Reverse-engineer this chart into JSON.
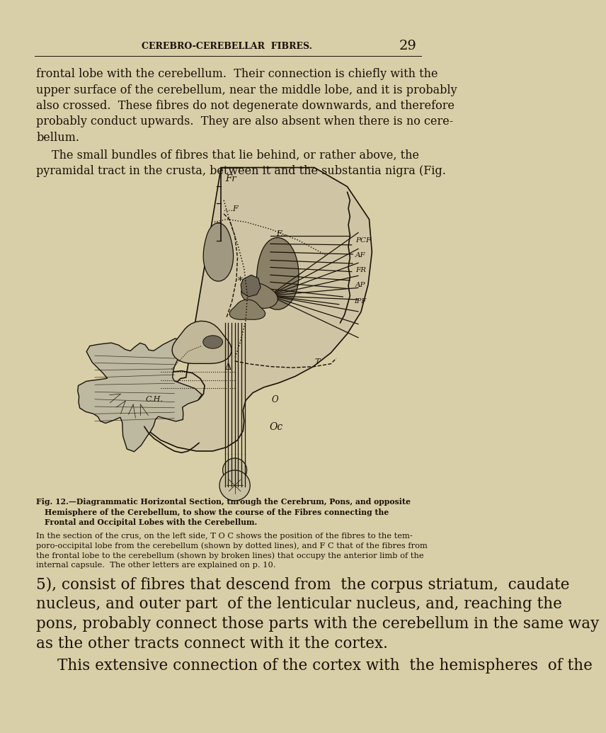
{
  "bg_color": "#d8cfa8",
  "text_color": "#1a1208",
  "header": "CEREBRO-CEREBELLAR  FIBRES.",
  "page_number": "29",
  "para1_lines": [
    "frontal lobe with the cerebellum.  Their connection is chiefly with the",
    "upper surface of the cerebellum, near the middle lobe, and it is probably",
    "also crossed.  These fibres do not degenerate downwards, and therefore",
    "probably conduct upwards.  They are also absent when there is no cere-",
    "bellum."
  ],
  "para2_lines": [
    "The small bundles of fibres that lie behind, or rather above, the",
    "pyramidal tract in the crusta, between it and the substantia nigra (Fig."
  ],
  "fig_cap_bold_lines": [
    "Fig. 12.—Diagrammatic Horizontal Section, through the Cerebrum, Pons, and opposite",
    "Hemisphere of the Cerebellum, to show the course of the Fibres connecting the",
    "Frontal and Occipital Lobes with the Cerebellum."
  ],
  "fig_cap_body_lines": [
    "In the section of the crus, on the left side, T O C shows the position of the fibres to the tem-",
    "poro-occipital lobe from the cerebellum (shown by dotted lines), and F C that of the fibres from",
    "the frontal lobe to the cerebellum (shown by broken lines) that occupy the anterior limb of the",
    "internal capsule.  The other letters are explained on p. 10."
  ],
  "para3_lines": [
    "5), consist of fibres that descend from  the corpus striatum,  caudate",
    "nucleus, and outer part  of the lenticular nucleus, and, reaching the",
    "pons, probably connect those parts with the cerebellum in the same way",
    "as the other tracts connect with it the cortex."
  ],
  "para4_line": "This extensive connection of the cortex with  the hemispheres  of the",
  "diagram_color_bg": "#d8cfa8",
  "diagram_color_dark": "#1a1208",
  "diagram_color_gray1": "#a09880",
  "diagram_color_gray2": "#8a8068",
  "diagram_color_gray3": "#706858"
}
